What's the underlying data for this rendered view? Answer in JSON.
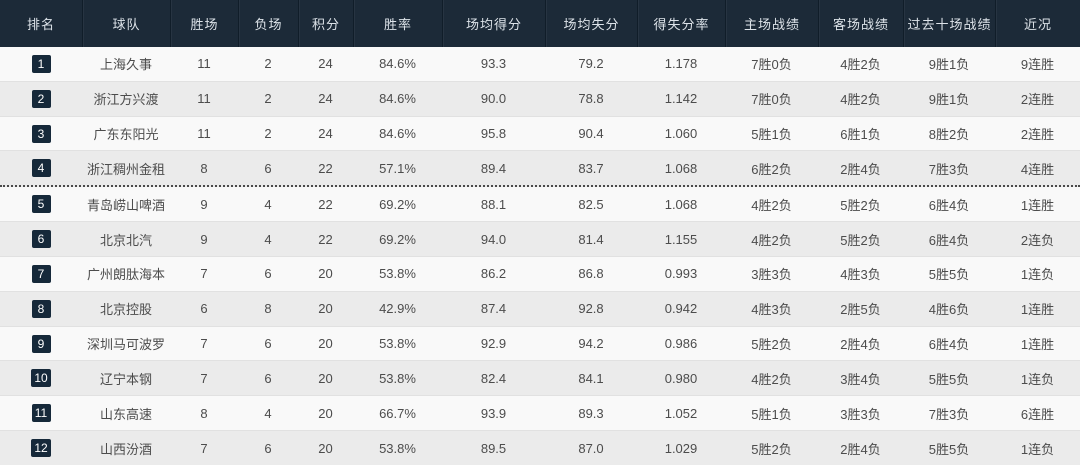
{
  "table": {
    "columns": [
      "排名",
      "球队",
      "胜场",
      "负场",
      "积分",
      "胜率",
      "场均得分",
      "场均失分",
      "得失分率",
      "主场战绩",
      "客场战绩",
      "过去十场战绩",
      "近况"
    ],
    "playoff_cutoff_after_rank": 4,
    "rows": [
      {
        "rank": "1",
        "team": "上海久事",
        "wins": "11",
        "losses": "2",
        "points": "24",
        "win_rate": "84.6%",
        "ppg": "93.3",
        "papg": "79.2",
        "ratio": "1.178",
        "home": "7胜0负",
        "away": "4胜2负",
        "last10": "9胜1负",
        "streak": "9连胜"
      },
      {
        "rank": "2",
        "team": "浙江方兴渡",
        "wins": "11",
        "losses": "2",
        "points": "24",
        "win_rate": "84.6%",
        "ppg": "90.0",
        "papg": "78.8",
        "ratio": "1.142",
        "home": "7胜0负",
        "away": "4胜2负",
        "last10": "9胜1负",
        "streak": "2连胜"
      },
      {
        "rank": "3",
        "team": "广东东阳光",
        "wins": "11",
        "losses": "2",
        "points": "24",
        "win_rate": "84.6%",
        "ppg": "95.8",
        "papg": "90.4",
        "ratio": "1.060",
        "home": "5胜1负",
        "away": "6胜1负",
        "last10": "8胜2负",
        "streak": "2连胜"
      },
      {
        "rank": "4",
        "team": "浙江稠州金租",
        "wins": "8",
        "losses": "6",
        "points": "22",
        "win_rate": "57.1%",
        "ppg": "89.4",
        "papg": "83.7",
        "ratio": "1.068",
        "home": "6胜2负",
        "away": "2胜4负",
        "last10": "7胜3负",
        "streak": "4连胜"
      },
      {
        "rank": "5",
        "team": "青岛崂山啤酒",
        "wins": "9",
        "losses": "4",
        "points": "22",
        "win_rate": "69.2%",
        "ppg": "88.1",
        "papg": "82.5",
        "ratio": "1.068",
        "home": "4胜2负",
        "away": "5胜2负",
        "last10": "6胜4负",
        "streak": "1连胜"
      },
      {
        "rank": "6",
        "team": "北京北汽",
        "wins": "9",
        "losses": "4",
        "points": "22",
        "win_rate": "69.2%",
        "ppg": "94.0",
        "papg": "81.4",
        "ratio": "1.155",
        "home": "4胜2负",
        "away": "5胜2负",
        "last10": "6胜4负",
        "streak": "2连负"
      },
      {
        "rank": "7",
        "team": "广州朗肽海本",
        "wins": "7",
        "losses": "6",
        "points": "20",
        "win_rate": "53.8%",
        "ppg": "86.2",
        "papg": "86.8",
        "ratio": "0.993",
        "home": "3胜3负",
        "away": "4胜3负",
        "last10": "5胜5负",
        "streak": "1连负"
      },
      {
        "rank": "8",
        "team": "北京控股",
        "wins": "6",
        "losses": "8",
        "points": "20",
        "win_rate": "42.9%",
        "ppg": "87.4",
        "papg": "92.8",
        "ratio": "0.942",
        "home": "4胜3负",
        "away": "2胜5负",
        "last10": "4胜6负",
        "streak": "1连胜"
      },
      {
        "rank": "9",
        "team": "深圳马可波罗",
        "wins": "7",
        "losses": "6",
        "points": "20",
        "win_rate": "53.8%",
        "ppg": "92.9",
        "papg": "94.2",
        "ratio": "0.986",
        "home": "5胜2负",
        "away": "2胜4负",
        "last10": "6胜4负",
        "streak": "1连胜"
      },
      {
        "rank": "10",
        "team": "辽宁本钢",
        "wins": "7",
        "losses": "6",
        "points": "20",
        "win_rate": "53.8%",
        "ppg": "82.4",
        "papg": "84.1",
        "ratio": "0.980",
        "home": "4胜2负",
        "away": "3胜4负",
        "last10": "5胜5负",
        "streak": "1连负"
      },
      {
        "rank": "11",
        "team": "山东高速",
        "wins": "8",
        "losses": "4",
        "points": "20",
        "win_rate": "66.7%",
        "ppg": "93.9",
        "papg": "89.3",
        "ratio": "1.052",
        "home": "5胜1负",
        "away": "3胜3负",
        "last10": "7胜3负",
        "streak": "6连胜"
      },
      {
        "rank": "12",
        "team": "山西汾酒",
        "wins": "7",
        "losses": "6",
        "points": "20",
        "win_rate": "53.8%",
        "ppg": "89.5",
        "papg": "87.0",
        "ratio": "1.029",
        "home": "5胜2负",
        "away": "2胜4负",
        "last10": "5胜5负",
        "streak": "1连负"
      }
    ]
  },
  "colors": {
    "header_bg": "#1c2a38",
    "badge_bg": "#16293a",
    "row_bg": "#f9f9f9",
    "row_alt_bg": "#ebebeb",
    "cutoff_line": "#4a4a4a",
    "text": "#4c4c4c",
    "header_text": "#dde3e9"
  }
}
